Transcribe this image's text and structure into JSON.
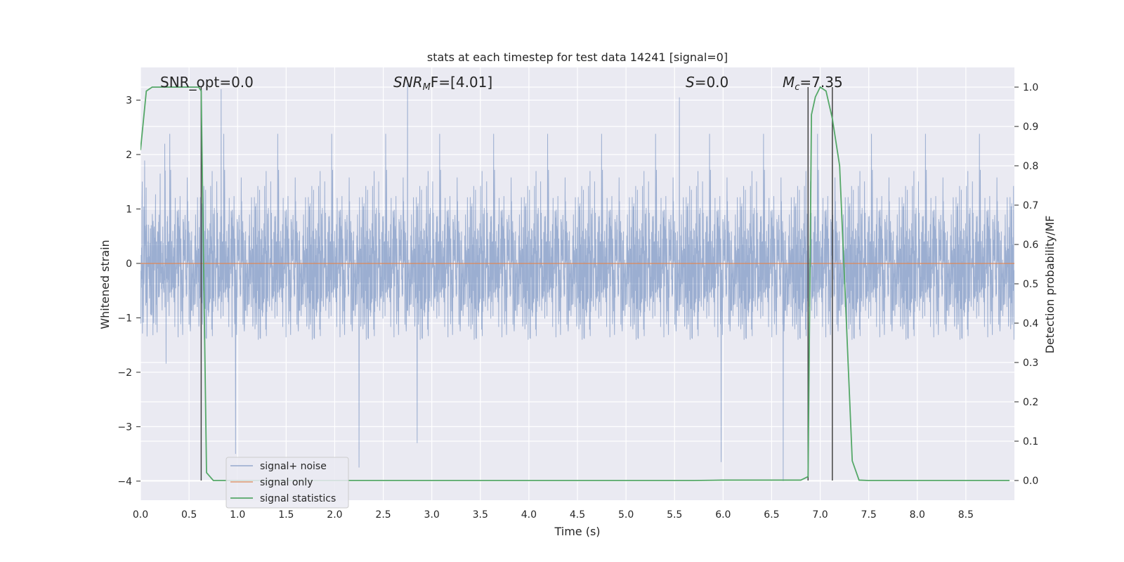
{
  "chart_data": {
    "type": "line",
    "title": "stats at each timestep for test data 14241 [signal=0]",
    "xlabel": "Time (s)",
    "ylabel": "Whitened strain",
    "y2label": "Detection probability/MF",
    "xlim": [
      0.0,
      9.0
    ],
    "ylim": [
      -4.35,
      3.6
    ],
    "y2lim": [
      -0.05,
      1.05
    ],
    "grid": true,
    "x_ticks": [
      "0.0",
      "0.5",
      "1.0",
      "1.5",
      "2.0",
      "2.5",
      "3.0",
      "3.5",
      "4.0",
      "4.5",
      "5.0",
      "5.5",
      "6.0",
      "6.5",
      "7.0",
      "7.5",
      "8.0",
      "8.5"
    ],
    "y_ticks": [
      "3",
      "2",
      "1",
      "0",
      "−1",
      "−2",
      "−3",
      "−4"
    ],
    "y2_ticks": [
      "1.0",
      "0.9",
      "0.8",
      "0.7",
      "0.6",
      "0.5",
      "0.4",
      "0.3",
      "0.2",
      "0.1",
      "0.0"
    ],
    "legend_location": "lower-left",
    "series": [
      {
        "name": "signal+ noise",
        "axis": "left",
        "color": "#4c72b0",
        "opacity": 0.5,
        "description_values": {
          "noise_sigma": 0.75,
          "x_range": [
            0.0,
            9.0
          ],
          "notable_peaks": [
            [
              0.83,
              3.2
            ],
            [
              2.75,
              3.3
            ],
            [
              5.55,
              3.05
            ],
            [
              0.98,
              -3.5
            ],
            [
              2.25,
              -3.75
            ],
            [
              2.85,
              -3.3
            ],
            [
              5.98,
              -3.65
            ],
            [
              6.62,
              -4.0
            ]
          ]
        }
      },
      {
        "name": "signal only",
        "axis": "left",
        "color": "#dd8452",
        "x": [
          0.0,
          9.0
        ],
        "y": [
          0.0,
          0.0
        ]
      },
      {
        "name": "signal statistics",
        "axis": "right",
        "color": "#55a868",
        "x": [
          0.0,
          0.06,
          0.12,
          0.3,
          0.5,
          0.6,
          0.625,
          0.68,
          0.75,
          1.0,
          2.0,
          4.0,
          5.7,
          6.0,
          6.5,
          6.8,
          6.875,
          6.91,
          6.95,
          7.0,
          7.06,
          7.125,
          7.2,
          7.27,
          7.33,
          7.4,
          7.5,
          8.0,
          8.5,
          8.95
        ],
        "y": [
          0.84,
          0.99,
          1.0,
          1.0,
          1.0,
          1.0,
          0.99,
          0.02,
          0.0,
          0.0,
          0.0,
          0.0,
          0.0,
          0.001,
          0.001,
          0.001,
          0.01,
          0.93,
          0.975,
          1.0,
          0.99,
          0.92,
          0.8,
          0.4,
          0.05,
          0.001,
          0.0,
          0.0,
          0.0,
          0.0
        ]
      }
    ],
    "vertical_lines": [
      0.625,
      6.875,
      7.125
    ],
    "annotations": [
      "SNR_opt=0.0",
      "SNR_MF=[4.01]",
      "S=0.0",
      "M_c=7.35"
    ]
  },
  "annotations_text": {
    "snr_opt": "SNR_opt=0.0",
    "snr_mf_base": "SNR",
    "snr_mf_sub": "M",
    "snr_mf_rest": "F=[4.01]",
    "s_var": "S",
    "s_rest": "=0.0",
    "mc_var": "M",
    "mc_sub": "c",
    "mc_rest": "=7.35"
  },
  "colors": {
    "plot_background": "#eaeaf2",
    "grid": "#ffffff",
    "noise": "#4c72b0",
    "signal": "#dd8452",
    "statistics": "#55a868",
    "vline": "#444444"
  }
}
